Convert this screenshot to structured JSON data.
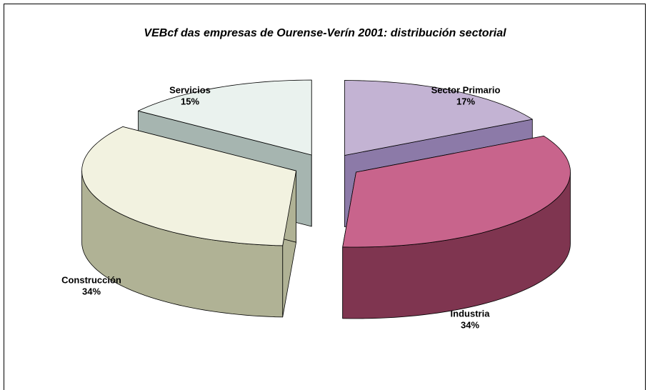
{
  "chart_data": {
    "type": "pie3d",
    "title": "VEBcf  das empresas de  Ourense-Verín 2001: distribución sectorial",
    "categories": [
      "Sector Primario",
      "Industria",
      "Construcción",
      "Servicios"
    ],
    "values": [
      17,
      34,
      34,
      15
    ],
    "value_labels": [
      "17%",
      "34%",
      "34%",
      "15%"
    ],
    "colors": [
      "#c3b3d3",
      "#c8648c",
      "#f2f2e0",
      "#eaf2ee"
    ],
    "side_colors": [
      "#8c7aa8",
      "#7f3550",
      "#b0b295",
      "#a6b5b0"
    ]
  }
}
